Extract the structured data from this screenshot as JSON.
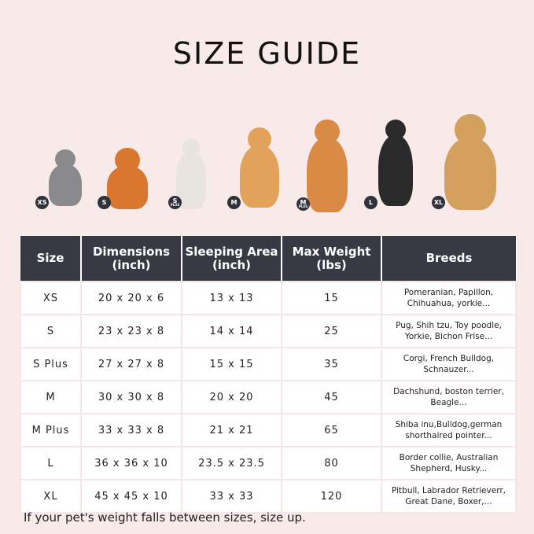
{
  "title": "SIZE GUIDE",
  "pets": [
    {
      "badge": "XS",
      "badge_sub": "",
      "color": "#8a8a8c"
    },
    {
      "badge": "S",
      "badge_sub": "",
      "color": "#d8772d"
    },
    {
      "badge": "S",
      "badge_sub": "PLUS",
      "color": "#e8e4e0"
    },
    {
      "badge": "M",
      "badge_sub": "",
      "color": "#e3a25a"
    },
    {
      "badge": "M",
      "badge_sub": "PLUS",
      "color": "#d98a45"
    },
    {
      "badge": "L",
      "badge_sub": "",
      "color": "#2a2a2a"
    },
    {
      "badge": "XL",
      "badge_sub": "",
      "color": "#d4a05e"
    }
  ],
  "table": {
    "headers": [
      "Size",
      "Dimensions\n(inch)",
      "Sleeping Area\n(inch)",
      "Max Weight\n(lbs)",
      "Breeds"
    ],
    "rows": [
      [
        "XS",
        "20 x 20 x 6",
        "13 x 13",
        "15",
        "Pomeranian, Papillon, Chihuahua, yorkie..."
      ],
      [
        "S",
        "23 x 23 x 8",
        "14 x 14",
        "25",
        "Pug, Shih tzu, Toy poodle, Yorkie, Bichon Frise..."
      ],
      [
        "S Plus",
        "27 x 27 x 8",
        "15 x 15",
        "35",
        "Corgi, French Bulldog, Schnauzer..."
      ],
      [
        "M",
        "30 x 30 x 8",
        "20 x 20",
        "45",
        "Dachshund, boston terrier, Beagle..."
      ],
      [
        "M Plus",
        "33 x 33 x 8",
        "21 x 21",
        "65",
        "Shiba inu,Bulldog,german shorthaired pointer..."
      ],
      [
        "L",
        "36 x 36 x 10",
        "23.5 x 23.5",
        "80",
        "Border collie, Australian Shepherd, Husky..."
      ],
      [
        "XL",
        "45 x 45 x 10",
        "33 x 33",
        "120",
        "Pitbull, Labrador Retrieverr, Great Dane, Boxer,..."
      ]
    ]
  },
  "footnote": "If your pet's weight falls between sizes, size up."
}
